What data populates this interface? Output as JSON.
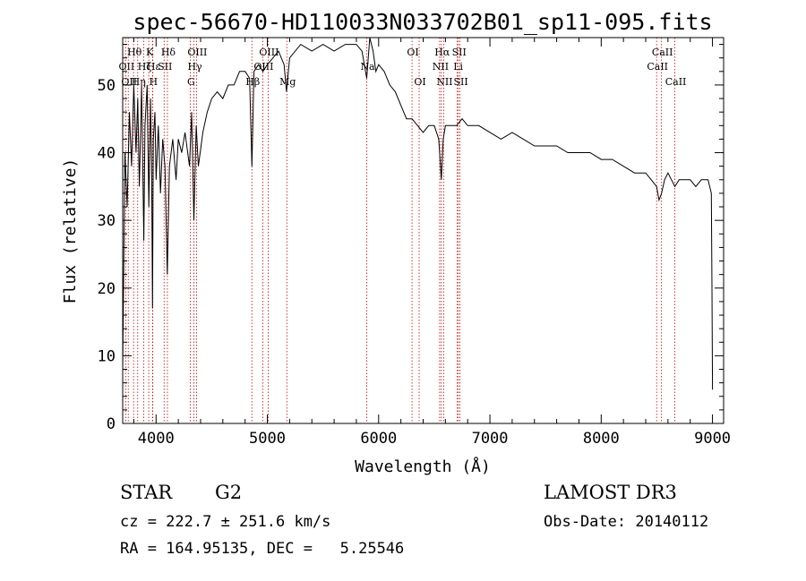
{
  "chart_data": {
    "type": "line",
    "title": "spec-56670-HD110033N033702B01_sp11-095.fits",
    "xlabel": "Wavelength (Å)",
    "ylabel": "Flux (relative)",
    "xlim": [
      3700,
      9100
    ],
    "ylim": [
      0,
      57
    ],
    "xticks": [
      4000,
      5000,
      6000,
      7000,
      8000,
      9000
    ],
    "yticks": [
      0,
      10,
      20,
      30,
      40,
      50
    ],
    "series": [
      {
        "name": "flux",
        "x": [
          3700,
          3720,
          3740,
          3760,
          3780,
          3800,
          3820,
          3835,
          3850,
          3870,
          3890,
          3900,
          3920,
          3935,
          3950,
          3960,
          3968,
          3975,
          3990,
          4000,
          4020,
          4040,
          4060,
          4080,
          4101,
          4120,
          4150,
          4180,
          4200,
          4230,
          4260,
          4300,
          4320,
          4340,
          4361,
          4380,
          4420,
          4460,
          4500,
          4550,
          4600,
          4650,
          4700,
          4750,
          4800,
          4840,
          4861,
          4880,
          4920,
          4960,
          5000,
          5050,
          5100,
          5150,
          5172,
          5200,
          5300,
          5400,
          5500,
          5600,
          5700,
          5800,
          5850,
          5893,
          5920,
          5950,
          5975,
          6000,
          6050,
          6100,
          6150,
          6200,
          6250,
          6300,
          6350,
          6400,
          6450,
          6500,
          6540,
          6563,
          6580,
          6600,
          6650,
          6700,
          6750,
          6800,
          6900,
          7000,
          7100,
          7200,
          7300,
          7400,
          7500,
          7600,
          7700,
          7800,
          7900,
          8000,
          8100,
          8200,
          8300,
          8400,
          8450,
          8498,
          8520,
          8542,
          8570,
          8600,
          8662,
          8700,
          8750,
          8800,
          8850,
          8900,
          8960,
          8990,
          8995,
          9000
        ],
        "values": [
          8,
          40,
          32,
          46,
          38,
          50,
          40,
          48,
          35,
          50,
          27,
          44,
          50,
          32,
          48,
          38,
          17,
          42,
          46,
          36,
          44,
          34,
          42,
          38,
          22,
          38,
          42,
          36,
          42,
          40,
          43,
          38,
          46,
          30,
          44,
          38,
          43,
          46,
          48,
          49,
          48,
          50,
          50,
          52,
          52,
          51,
          38,
          52,
          53,
          52,
          53,
          54,
          55,
          53,
          49,
          54,
          56,
          55,
          56,
          55,
          56,
          56,
          55,
          51,
          57,
          55,
          52,
          53,
          52,
          50,
          49,
          47,
          45,
          45,
          44,
          43,
          44,
          44,
          42,
          36,
          42,
          44,
          44,
          44,
          45,
          44,
          44,
          43,
          42,
          43,
          42,
          41,
          41,
          41,
          40,
          40,
          40,
          39,
          39,
          38,
          37,
          37,
          36,
          35,
          33,
          34,
          36,
          37,
          35,
          36,
          36,
          36,
          35,
          36,
          36,
          34,
          20,
          5
        ]
      }
    ],
    "lines": [
      {
        "x": 3727,
        "label": "OII",
        "row": 2
      },
      {
        "x": 3750,
        "label": "OII",
        "row": 3
      },
      {
        "x": 3798,
        "label": "Hθ",
        "row": 1
      },
      {
        "x": 3835,
        "label": "Hη",
        "row": 3
      },
      {
        "x": 3889,
        "label": "Hζ",
        "row": 2
      },
      {
        "x": 3934,
        "label": "K",
        "row": 1
      },
      {
        "x": 3970,
        "label": "Hε",
        "row": 2
      },
      {
        "x": 3968,
        "label": "H",
        "row": 3
      },
      {
        "x": 4072,
        "label": "SII",
        "row": 2
      },
      {
        "x": 4102,
        "label": "Hδ",
        "row": 1
      },
      {
        "x": 4307,
        "label": "G",
        "row": 3
      },
      {
        "x": 4340,
        "label": "Hγ",
        "row": 2
      },
      {
        "x": 4363,
        "label": "OIII",
        "row": 1
      },
      {
        "x": 4861,
        "label": "Hβ",
        "row": 3
      },
      {
        "x": 4959,
        "label": "OIII",
        "row": 2
      },
      {
        "x": 5007,
        "label": "OIII",
        "row": 1
      },
      {
        "x": 5175,
        "label": "Mg",
        "row": 3
      },
      {
        "x": 5893,
        "label": "Na",
        "row": 2
      },
      {
        "x": 6300,
        "label": "OI",
        "row": 1
      },
      {
        "x": 6364,
        "label": "OI",
        "row": 3
      },
      {
        "x": 6548,
        "label": "NII",
        "row": 2
      },
      {
        "x": 6563,
        "label": "Hα",
        "row": 1
      },
      {
        "x": 6584,
        "label": "NII",
        "row": 3
      },
      {
        "x": 6707,
        "label": "Li",
        "row": 2
      },
      {
        "x": 6716,
        "label": "SII",
        "row": 1
      },
      {
        "x": 6731,
        "label": "SII",
        "row": 3
      },
      {
        "x": 8498,
        "label": "CaII",
        "row": 2
      },
      {
        "x": 8542,
        "label": "CaII",
        "row": 1
      },
      {
        "x": 8662,
        "label": "CaII",
        "row": 3
      }
    ]
  },
  "info": {
    "class_label": "STAR",
    "subclass": "G2",
    "survey": "LAMOST DR3",
    "cz_text": "cz = 222.7 ± 251.6 km/s",
    "obs_date": "Obs-Date: 20140112",
    "coords": "RA = 164.95135, DEC =   5.25546"
  },
  "colors": {
    "spectrum": "#000000",
    "line_marker": "#cc0000",
    "axis": "#000000"
  }
}
